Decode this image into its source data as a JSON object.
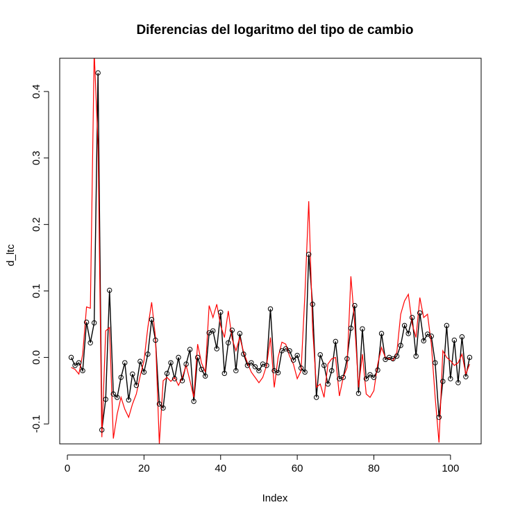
{
  "chart_data": {
    "type": "line",
    "title": "Diferencias del logaritmo del tipo de cambio",
    "xlabel": "Index",
    "ylabel": "d_ltc",
    "xlim": [
      -2,
      108
    ],
    "ylim": [
      -0.13,
      0.45
    ],
    "xticks": [
      0,
      20,
      40,
      60,
      80,
      100
    ],
    "yticks": [
      -0.1,
      0.0,
      0.1,
      0.2,
      0.3,
      0.4
    ],
    "xtick_labels": [
      "0",
      "20",
      "40",
      "60",
      "80",
      "100"
    ],
    "ytick_labels": [
      "-0.1",
      "0.0",
      "0.1",
      "0.2",
      "0.3",
      "0.4"
    ],
    "grid": false,
    "legend": "none",
    "series": [
      {
        "style": "line+points",
        "color": "#000000",
        "x": [
          1,
          2,
          3,
          4,
          5,
          6,
          7,
          8,
          9,
          10,
          11,
          12,
          13,
          14,
          15,
          16,
          17,
          18,
          19,
          20,
          21,
          22,
          23,
          24,
          25,
          26,
          27,
          28,
          29,
          30,
          31,
          32,
          33,
          34,
          35,
          36,
          37,
          38,
          39,
          40,
          41,
          42,
          43,
          44,
          45,
          46,
          47,
          48,
          49,
          50,
          51,
          52,
          53,
          54,
          55,
          56,
          57,
          58,
          59,
          60,
          61,
          62,
          63,
          64,
          65,
          66,
          67,
          68,
          69,
          70,
          71,
          72,
          73,
          74,
          75,
          76,
          77,
          78,
          79,
          80,
          81,
          82,
          83,
          84,
          85,
          86,
          87,
          88,
          89,
          90,
          91,
          92,
          93,
          94,
          95,
          96,
          97,
          98,
          99,
          100,
          101,
          102,
          103,
          104,
          105
        ],
        "y": [
          0.0,
          -0.012,
          -0.008,
          -0.02,
          0.053,
          0.022,
          0.052,
          0.428,
          -0.109,
          -0.063,
          0.101,
          -0.055,
          -0.06,
          -0.03,
          -0.008,
          -0.064,
          -0.025,
          -0.042,
          -0.006,
          -0.022,
          0.005,
          0.057,
          0.026,
          -0.07,
          -0.076,
          -0.024,
          -0.008,
          -0.032,
          0.0,
          -0.035,
          -0.01,
          0.012,
          -0.066,
          0.0,
          -0.018,
          -0.028,
          0.037,
          0.04,
          0.013,
          0.068,
          -0.024,
          0.022,
          0.041,
          -0.02,
          0.036,
          0.005,
          -0.012,
          -0.008,
          -0.014,
          -0.02,
          -0.01,
          -0.012,
          0.073,
          -0.02,
          -0.023,
          0.01,
          0.013,
          0.01,
          -0.004,
          0.003,
          -0.016,
          -0.022,
          0.155,
          0.08,
          -0.06,
          0.004,
          -0.012,
          -0.04,
          -0.02,
          0.024,
          -0.032,
          -0.03,
          -0.002,
          0.044,
          0.078,
          -0.054,
          0.043,
          -0.032,
          -0.026,
          -0.03,
          -0.019,
          0.036,
          -0.003,
          0.0,
          -0.002,
          0.002,
          0.018,
          0.048,
          0.036,
          0.06,
          0.002,
          0.067,
          0.025,
          0.035,
          0.032,
          -0.008,
          -0.09,
          -0.036,
          0.048,
          -0.032,
          0.026,
          -0.038,
          0.031,
          -0.029,
          0.0
        ]
      },
      {
        "style": "line",
        "color": "#ff0000",
        "x": [
          1,
          2,
          3,
          4,
          5,
          6,
          7,
          8,
          9,
          10,
          11,
          12,
          13,
          14,
          15,
          16,
          17,
          18,
          19,
          20,
          21,
          22,
          23,
          24,
          25,
          26,
          27,
          28,
          29,
          30,
          31,
          32,
          33,
          34,
          35,
          36,
          37,
          38,
          39,
          40,
          41,
          42,
          43,
          44,
          45,
          46,
          47,
          48,
          49,
          50,
          51,
          52,
          53,
          54,
          55,
          56,
          57,
          58,
          59,
          60,
          61,
          62,
          63,
          64,
          65,
          66,
          67,
          68,
          69,
          70,
          71,
          72,
          73,
          74,
          75,
          76,
          77,
          78,
          79,
          80,
          81,
          82,
          83,
          84,
          85,
          86,
          87,
          88,
          89,
          90,
          91,
          92,
          93,
          94,
          95,
          96,
          97,
          98,
          99,
          100,
          101,
          102,
          103,
          104,
          105
        ],
        "y": [
          -0.015,
          -0.018,
          -0.025,
          0.005,
          0.076,
          0.074,
          0.46,
          0.32,
          -0.12,
          0.04,
          0.045,
          -0.122,
          -0.085,
          -0.06,
          -0.078,
          -0.09,
          -0.07,
          -0.055,
          -0.028,
          -0.005,
          0.045,
          0.083,
          0.03,
          -0.13,
          -0.035,
          -0.03,
          -0.036,
          -0.03,
          -0.042,
          -0.03,
          -0.012,
          -0.035,
          -0.06,
          0.02,
          -0.008,
          -0.022,
          0.078,
          0.06,
          0.08,
          0.048,
          0.03,
          0.07,
          0.028,
          0.01,
          0.03,
          0.008,
          -0.008,
          -0.022,
          -0.03,
          -0.038,
          -0.03,
          -0.012,
          0.03,
          -0.045,
          0.0,
          0.023,
          0.02,
          0.002,
          -0.01,
          -0.032,
          -0.02,
          0.095,
          0.235,
          0.045,
          -0.045,
          -0.04,
          -0.06,
          -0.01,
          -0.002,
          0.0,
          -0.058,
          -0.03,
          -0.015,
          0.122,
          0.05,
          -0.045,
          0.005,
          -0.055,
          -0.06,
          -0.05,
          -0.01,
          0.015,
          0.0,
          -0.002,
          -0.005,
          0.008,
          0.065,
          0.085,
          0.095,
          0.05,
          0.03,
          0.09,
          0.06,
          0.065,
          0.02,
          -0.06,
          -0.128,
          0.01,
          0.0,
          -0.005,
          -0.012,
          -0.008,
          0.005,
          -0.025,
          -0.01
        ]
      }
    ]
  }
}
